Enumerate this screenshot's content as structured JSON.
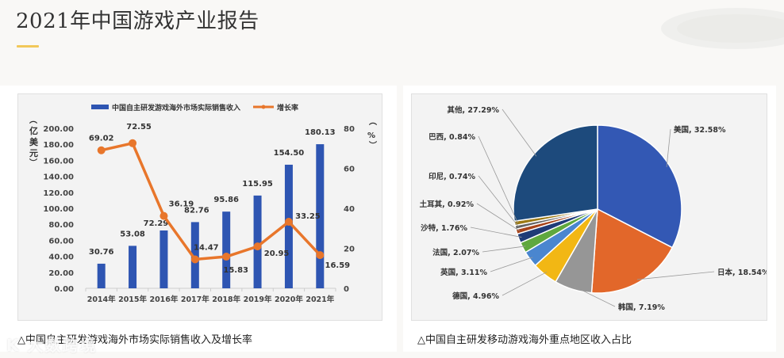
{
  "page": {
    "title": "2021年中国游戏产业报告",
    "accent_color": "#f2c85a",
    "watermark": "K 大数跨境"
  },
  "left_panel": {
    "caption": "△中国自主研发游戏海外市场实际销售收入及增长率",
    "legend": {
      "bar_label": "中国自主研发游戏海外市场实际销售收入",
      "line_label": "增长率"
    },
    "y_left_unit": "（亿美元）",
    "y_right_unit": "（%）"
  },
  "right_panel": {
    "caption": "△中国自主研发移动游戏海外重点地区收入占比"
  },
  "chart_data": [
    {
      "type": "bar",
      "title": "中国自主研发游戏海外市场实际销售收入及增长率",
      "categories": [
        "2014年",
        "2015年",
        "2016年",
        "2017年",
        "2018年",
        "2019年",
        "2020年",
        "2021年"
      ],
      "series": [
        {
          "name": "中国自主研发游戏海外市场实际销售收入",
          "type": "bar",
          "axis": "left",
          "color": "#2e55b2",
          "values": [
            30.76,
            53.08,
            72.29,
            82.76,
            95.86,
            115.95,
            154.5,
            180.13
          ]
        },
        {
          "name": "增长率",
          "type": "line",
          "axis": "right",
          "color": "#e8762b",
          "values": [
            69.02,
            72.55,
            36.19,
            14.47,
            15.83,
            20.95,
            33.25,
            16.59
          ]
        }
      ],
      "ylabel": "亿美元",
      "y2label": "%",
      "ylim": [
        0,
        200
      ],
      "y2lim": [
        0,
        80
      ],
      "yticks": [
        "0.00",
        "20.00",
        "40.00",
        "60.00",
        "80.00",
        "100.00",
        "120.00",
        "140.00",
        "160.00",
        "180.00",
        "200.00"
      ],
      "y2ticks": [
        "0",
        "20",
        "40",
        "60",
        "80"
      ],
      "bar_labels": [
        "30.76",
        "53.08",
        "72.29",
        "82.76",
        "95.86",
        "115.95",
        "154.50",
        "180.13"
      ],
      "line_labels": [
        "69.02",
        "72.55",
        "36.19",
        "14.47",
        "15.83",
        "20.95",
        "33.25",
        "16.59"
      ],
      "legend_position": "top",
      "grid": false
    },
    {
      "type": "pie",
      "title": "中国自主研发移动游戏海外重点地区收入占比",
      "categories": [
        "美国",
        "日本",
        "韩国",
        "德国",
        "英国",
        "法国",
        "沙特",
        "土耳其",
        "印尼",
        "巴西",
        "其他"
      ],
      "values": [
        32.58,
        18.54,
        7.19,
        4.96,
        3.11,
        2.07,
        1.76,
        0.92,
        0.74,
        0.84,
        27.29
      ],
      "labels": [
        "美国, 32.58%",
        "日本, 18.54%",
        "韩国, 7.19%",
        "德国, 4.96%",
        "英国, 3.11%",
        "法国, 2.07%",
        "沙特, 1.76%",
        "土耳其, 0.92%",
        "印尼, 0.74%",
        "巴西, 0.84%",
        "其他, 27.29%"
      ],
      "colors": [
        "#3358b4",
        "#e2672a",
        "#969696",
        "#f2b714",
        "#4a86cf",
        "#5fa83e",
        "#1f3b77",
        "#a7431a",
        "#646464",
        "#9c7a14",
        "#1d4a7c"
      ]
    }
  ]
}
